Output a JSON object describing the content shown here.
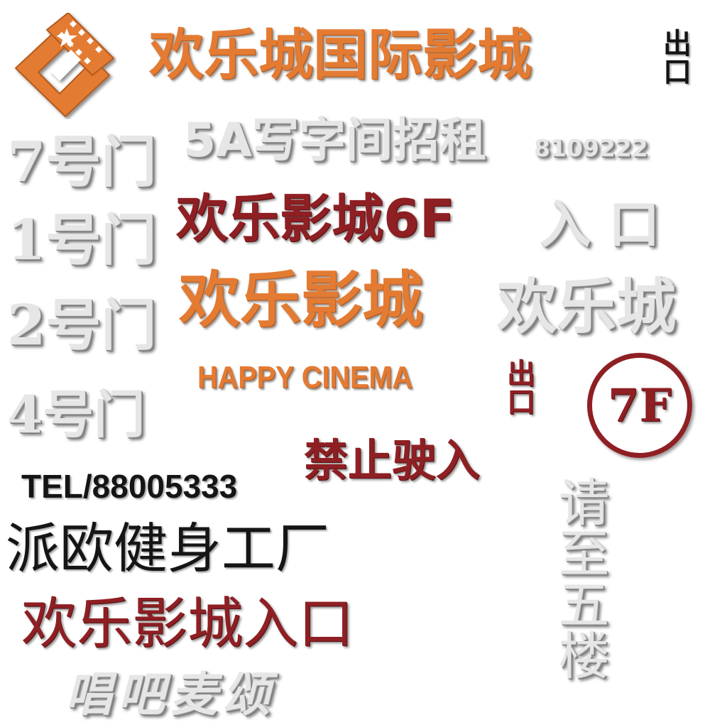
{
  "signs": {
    "cinema_intl": "欢乐城国际影城",
    "exit_top": "出口",
    "office_rent": "5A写字间招租",
    "office_phone": "8109222",
    "door_7": "7号门",
    "door_1": "1号门",
    "door_2": "2号门",
    "door_4": "4号门",
    "cinema_6f": "欢乐影城6F",
    "entrance": "入 口",
    "cinema_name": "欢乐影城",
    "happy_city": "欢乐城",
    "happy_cinema_en": "HAPPY CINEMA",
    "exit_mid": "出口",
    "floor_7f": "7F",
    "no_entry": "禁止驶入",
    "tel": "TEL/88005333",
    "gym": "派欧健身工厂",
    "cinema_entrance": "欢乐影城入口",
    "fifth_floor": "请至五楼",
    "ktv": "唱吧麦颂"
  },
  "colors": {
    "orange": "#e37b33",
    "dark_red": "#8e1f23",
    "silver": "#e6e6e6",
    "black": "#151515"
  },
  "icons": {
    "logo": "film-strip-star-logo"
  }
}
